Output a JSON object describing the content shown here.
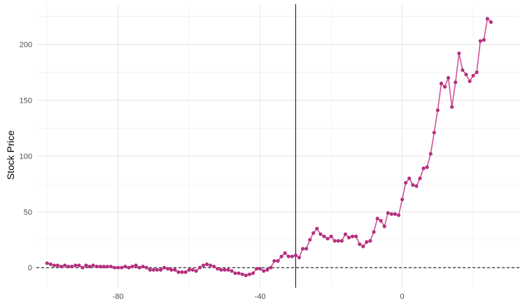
{
  "chart_data": {
    "type": "line",
    "title": "",
    "xlabel": "",
    "ylabel": "Stock Price",
    "xlim": [
      -103,
      33
    ],
    "ylim": [
      -18,
      236
    ],
    "x_ticks": [
      -80,
      -40,
      0
    ],
    "x_tick_labels": [
      "-80",
      "-40",
      "0"
    ],
    "x_minor_grid": [
      -100,
      -60,
      -20,
      20
    ],
    "y_ticks": [
      0,
      50,
      100,
      150,
      200
    ],
    "y_tick_labels": [
      "0",
      "50",
      "100",
      "150",
      "200"
    ],
    "y_minor_grid": [
      25,
      75,
      125,
      175,
      225
    ],
    "grid": true,
    "vline_x": -30,
    "hline_y": 0,
    "series": [
      {
        "name": "",
        "color": "#b5317f",
        "x": [
          -100,
          -99,
          -98,
          -97,
          -96,
          -95,
          -94,
          -93,
          -92,
          -91,
          -90,
          -89,
          -88,
          -87,
          -86,
          -85,
          -84,
          -83,
          -82,
          -81,
          -80,
          -79,
          -78,
          -77,
          -76,
          -75,
          -74,
          -73,
          -72,
          -71,
          -70,
          -69,
          -68,
          -67,
          -66,
          -65,
          -64,
          -63,
          -62,
          -61,
          -60,
          -59,
          -58,
          -57,
          -56,
          -55,
          -54,
          -53,
          -52,
          -51,
          -50,
          -49,
          -48,
          -47,
          -46,
          -45,
          -44,
          -43,
          -42,
          -41,
          -40,
          -39,
          -38,
          -37,
          -36,
          -35,
          -34,
          -33,
          -32,
          -31,
          -30,
          -29,
          -28,
          -27,
          -26,
          -25,
          -24,
          -23,
          -22,
          -21,
          -20,
          -19,
          -18,
          -17,
          -16,
          -15,
          -14,
          -13,
          -12,
          -11,
          -10,
          -9,
          -8,
          -7,
          -6,
          -5,
          -4,
          -3,
          -2,
          -1,
          0,
          1,
          2,
          3,
          4,
          5,
          6,
          7,
          8,
          9,
          10,
          11,
          12,
          13,
          14,
          15,
          16,
          17,
          18,
          19,
          20,
          21,
          22,
          23,
          24,
          25
        ],
        "y": [
          4,
          3,
          2,
          2,
          1,
          2,
          1,
          1,
          2,
          2,
          0,
          2,
          1,
          2,
          1,
          1,
          1,
          1,
          1,
          0,
          0,
          0,
          1,
          0,
          1,
          2,
          0,
          1,
          0,
          -2,
          -2,
          -2,
          -2,
          0,
          -1,
          -2,
          -2,
          -4,
          -4,
          -4,
          -2,
          -2,
          -3,
          0,
          2,
          3,
          2,
          1,
          -1,
          -2,
          -2,
          -2,
          -3,
          -5,
          -5,
          -6,
          -7,
          -6,
          -5,
          -1,
          -1,
          -3,
          -2,
          0,
          6,
          6,
          10,
          13,
          10,
          10,
          11,
          9,
          17,
          17,
          25,
          31,
          35,
          30,
          28,
          26,
          28,
          24,
          24,
          24,
          30,
          27,
          28,
          28,
          21,
          19,
          23,
          24,
          32,
          44,
          42,
          37,
          49,
          48,
          48,
          47,
          61,
          76,
          80,
          74,
          73,
          80,
          89,
          90,
          102,
          121,
          141,
          165,
          162,
          170,
          144,
          166,
          192,
          177,
          173,
          167,
          172,
          175,
          203,
          204,
          223,
          220
        ]
      }
    ]
  }
}
